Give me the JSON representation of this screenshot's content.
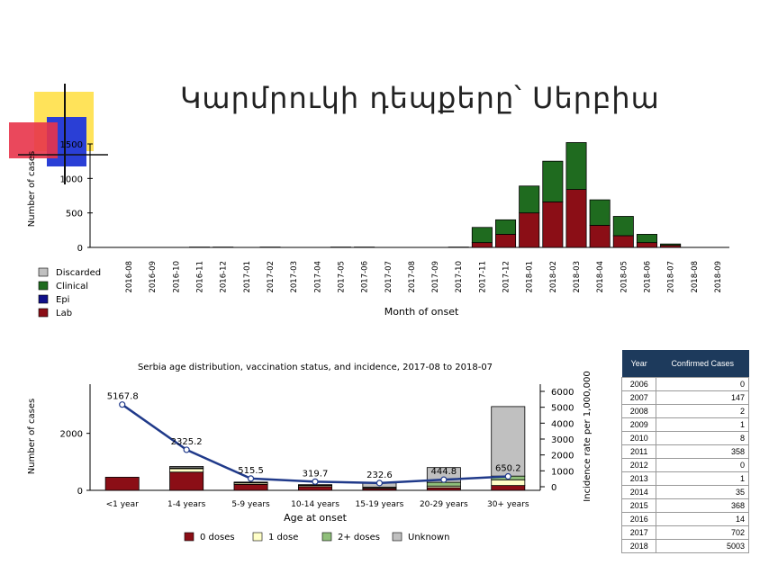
{
  "title": "Կարմրուկի դեպքերը՝ Սերբիա",
  "colors": {
    "discarded": "#c0c0c0",
    "clinical": "#1f6b1f",
    "epi": "#10108a",
    "lab": "#8b0e16",
    "dose0": "#8b0e16",
    "dose1": "#ffffc8",
    "dose2": "#8fbf7a",
    "unknown": "#c0c0c0",
    "line": "#203a8a",
    "table_header": "#1d3a5c"
  },
  "chart_data": [
    {
      "type": "bar",
      "stacked": true,
      "title": "",
      "xlabel": "Month of onset",
      "ylabel": "Number of cases",
      "ylim": [
        0,
        1500
      ],
      "yticks": [
        "0",
        "500",
        "1000",
        "1500"
      ],
      "legend": [
        "Discarded",
        "Clinical",
        "Epi",
        "Lab"
      ],
      "legend_position": "bottom-left",
      "categories": [
        "2016-08",
        "2016-09",
        "2016-10",
        "2016-11",
        "2016-12",
        "2017-01",
        "2017-02",
        "2017-03",
        "2017-04",
        "2017-05",
        "2017-06",
        "2017-07",
        "2017-08",
        "2017-09",
        "2017-10",
        "2017-11",
        "2017-12",
        "2018-01",
        "2018-02",
        "2018-03",
        "2018-04",
        "2018-05",
        "2018-06",
        "2018-07",
        "2018-08",
        "2018-09"
      ],
      "series": [
        {
          "name": "Lab",
          "values": [
            0,
            0,
            0,
            5,
            5,
            0,
            5,
            0,
            0,
            5,
            5,
            0,
            0,
            0,
            5,
            70,
            190,
            500,
            660,
            840,
            320,
            170,
            70,
            30,
            0,
            0
          ]
        },
        {
          "name": "Epi",
          "values": [
            0,
            0,
            0,
            0,
            0,
            0,
            0,
            0,
            0,
            0,
            0,
            0,
            0,
            0,
            0,
            0,
            0,
            0,
            0,
            0,
            0,
            0,
            0,
            0,
            0,
            0
          ]
        },
        {
          "name": "Clinical",
          "values": [
            0,
            0,
            0,
            0,
            0,
            0,
            0,
            0,
            0,
            0,
            0,
            0,
            0,
            0,
            0,
            220,
            210,
            390,
            590,
            680,
            370,
            280,
            120,
            20,
            0,
            0
          ]
        },
        {
          "name": "Discarded",
          "values": [
            0,
            0,
            0,
            0,
            0,
            0,
            0,
            0,
            0,
            0,
            0,
            0,
            0,
            0,
            0,
            0,
            0,
            0,
            0,
            0,
            0,
            0,
            0,
            0,
            0,
            0
          ]
        }
      ]
    },
    {
      "type": "bar",
      "stacked": true,
      "title": "Serbia age distribution, vaccination status, and incidence, 2017-08 to 2018-07",
      "xlabel": "Age at onset",
      "ylabel": "Number of cases",
      "y2label": "Incidence rate per 1,000,000",
      "ylim": [
        0,
        3000
      ],
      "yticks": [
        "0",
        "2000"
      ],
      "y2lim": [
        0,
        6000
      ],
      "y2ticks": [
        "0",
        "1000",
        "2000",
        "3000",
        "4000",
        "5000",
        "6000"
      ],
      "legend": [
        "0 doses",
        "1 dose",
        "2+ doses",
        "Unknown"
      ],
      "legend_position": "bottom",
      "categories": [
        "<1 year",
        "1-4 years",
        "5-9 years",
        "10-14 years",
        "15-19 years",
        "20-29 years",
        "30+ years"
      ],
      "series": [
        {
          "name": "0 doses",
          "values": [
            460,
            640,
            210,
            130,
            60,
            90,
            170
          ]
        },
        {
          "name": "1 dose",
          "values": [
            0,
            120,
            50,
            40,
            30,
            60,
            200
          ]
        },
        {
          "name": "2+ doses",
          "values": [
            0,
            30,
            10,
            10,
            20,
            130,
            130
          ]
        },
        {
          "name": "Unknown",
          "values": [
            0,
            50,
            20,
            20,
            150,
            520,
            2440
          ]
        }
      ],
      "incidence": {
        "values": [
          5167.8,
          2325.2,
          515.5,
          319.7,
          232.6,
          444.8,
          650.2
        ],
        "labels": [
          "5167.8",
          "2325.2",
          "515.5",
          "319.7",
          "232.6",
          "444.8",
          "650.2"
        ]
      }
    }
  ],
  "table": {
    "headers": [
      "Year",
      "Confirmed Cases"
    ],
    "rows": [
      [
        "2006",
        "0"
      ],
      [
        "2007",
        "147"
      ],
      [
        "2008",
        "2"
      ],
      [
        "2009",
        "1"
      ],
      [
        "2010",
        "8"
      ],
      [
        "2011",
        "358"
      ],
      [
        "2012",
        "0"
      ],
      [
        "2013",
        "1"
      ],
      [
        "2014",
        "35"
      ],
      [
        "2015",
        "368"
      ],
      [
        "2016",
        "14"
      ],
      [
        "2017",
        "702"
      ],
      [
        "2018",
        "5003"
      ]
    ]
  }
}
